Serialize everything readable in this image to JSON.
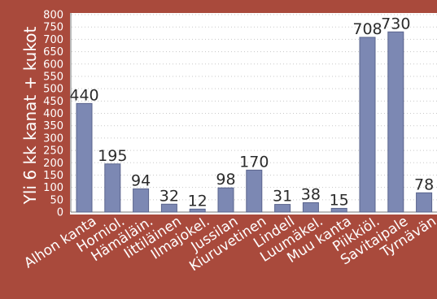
{
  "chart_data": {
    "type": "bar",
    "title": "",
    "ylabel": "Yli 6 kk kanat + kukot",
    "xlabel": "",
    "ylim": [
      0,
      800
    ],
    "yticks": [
      0,
      50,
      100,
      150,
      200,
      250,
      300,
      350,
      400,
      450,
      500,
      550,
      600,
      650,
      700,
      750,
      800
    ],
    "grid": true,
    "categories": [
      "Alhon kanta",
      "Horniol.",
      "Hämäläin.",
      "Iittiläinen",
      "Ilmajokel.",
      "Jussilan",
      "Kiuruvetinen",
      "Lindell",
      "Luumäkel.",
      "Muu kanta",
      "Piikkiöl.",
      "Savitaipale",
      "Tyrnävän"
    ],
    "values": [
      440,
      195,
      94,
      32,
      12,
      98,
      170,
      31,
      38,
      15,
      708,
      730,
      78
    ],
    "data_labels": [
      "440",
      "195",
      "94",
      "32",
      "12",
      "98",
      "170",
      "31",
      "38",
      "15",
      "708",
      "730",
      "78"
    ]
  },
  "colors": {
    "background": "#a94a3c",
    "plot_area": "#ffffff",
    "bar": "#7c88b3",
    "bar_edge": "#5a648c",
    "text": "#ffffff",
    "label_text": "#2b2b2b"
  }
}
